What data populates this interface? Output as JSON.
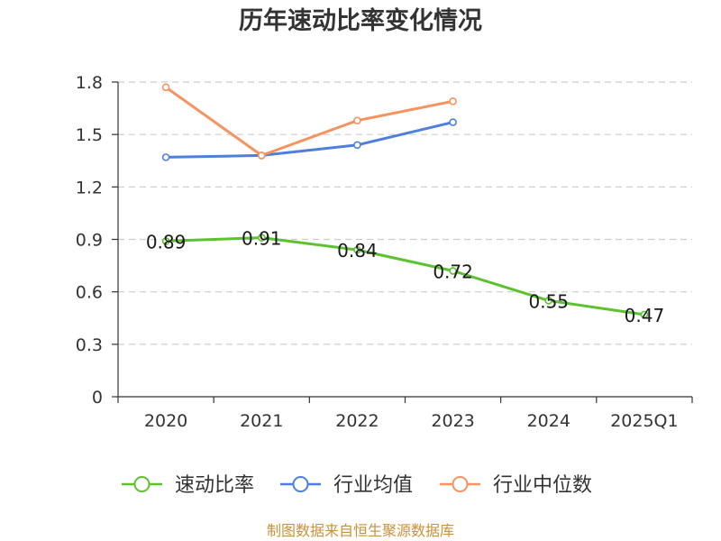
{
  "chart_data": {
    "type": "line",
    "title": "历年速动比率变化情况",
    "categories": [
      "2020",
      "2021",
      "2022",
      "2023",
      "2024",
      "2025Q1"
    ],
    "ylim": [
      0,
      1.8
    ],
    "yticks": [
      0,
      0.3,
      0.6,
      0.9,
      1.2,
      1.5,
      1.8
    ],
    "grid": true,
    "legend": "bottom",
    "series": [
      {
        "name": "速动比率",
        "color": "#5cc22f",
        "show_labels": true,
        "values": [
          0.89,
          0.91,
          0.84,
          0.72,
          0.55,
          0.47
        ]
      },
      {
        "name": "行业均值",
        "color": "#4e7fdd",
        "show_labels": false,
        "values": [
          1.37,
          1.38,
          1.44,
          1.57,
          null,
          null
        ]
      },
      {
        "name": "行业中位数",
        "color": "#f5925e",
        "show_labels": false,
        "values": [
          1.77,
          1.38,
          1.58,
          1.69,
          null,
          null
        ]
      }
    ]
  },
  "footer": "制图数据来自恒生聚源数据库"
}
